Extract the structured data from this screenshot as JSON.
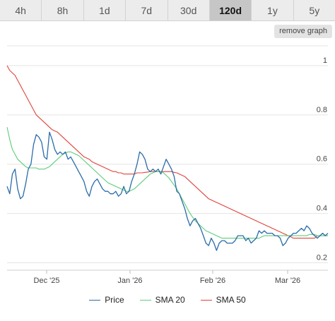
{
  "range_tabs": [
    {
      "label": "4h",
      "active": false
    },
    {
      "label": "8h",
      "active": false
    },
    {
      "label": "1d",
      "active": false
    },
    {
      "label": "7d",
      "active": false
    },
    {
      "label": "30d",
      "active": false
    },
    {
      "label": "120d",
      "active": true
    },
    {
      "label": "1y",
      "active": false
    },
    {
      "label": "5y",
      "active": false
    }
  ],
  "remove_graph_label": "remove graph",
  "chart_data": {
    "type": "line",
    "x_tick_labels": [
      "Dec '25",
      "Jan '26",
      "Feb '26",
      "Mar '26"
    ],
    "y_tick_labels": [
      "0.2",
      "0.4",
      "0.6",
      "0.8",
      "1"
    ],
    "y_ticks": [
      0.2,
      0.4,
      0.6,
      0.8,
      1.0
    ],
    "ylim": [
      0.17,
      1.08
    ],
    "grid": true,
    "legend_position": "bottom",
    "series": [
      {
        "name": "Price",
        "color": "#2a6ca8",
        "values": [
          0.51,
          0.48,
          0.56,
          0.58,
          0.5,
          0.46,
          0.47,
          0.52,
          0.58,
          0.6,
          0.68,
          0.72,
          0.71,
          0.69,
          0.63,
          0.62,
          0.73,
          0.7,
          0.66,
          0.64,
          0.65,
          0.64,
          0.65,
          0.62,
          0.63,
          0.61,
          0.59,
          0.57,
          0.55,
          0.53,
          0.49,
          0.47,
          0.51,
          0.53,
          0.54,
          0.52,
          0.5,
          0.49,
          0.49,
          0.48,
          0.48,
          0.49,
          0.47,
          0.48,
          0.51,
          0.48,
          0.49,
          0.53,
          0.56,
          0.6,
          0.65,
          0.64,
          0.62,
          0.58,
          0.57,
          0.58,
          0.57,
          0.58,
          0.56,
          0.59,
          0.62,
          0.6,
          0.58,
          0.55,
          0.49,
          0.48,
          0.45,
          0.42,
          0.38,
          0.35,
          0.37,
          0.38,
          0.36,
          0.34,
          0.31,
          0.28,
          0.27,
          0.3,
          0.28,
          0.25,
          0.28,
          0.29,
          0.29,
          0.28,
          0.28,
          0.28,
          0.29,
          0.31,
          0.31,
          0.31,
          0.29,
          0.3,
          0.28,
          0.29,
          0.3,
          0.33,
          0.32,
          0.33,
          0.32,
          0.32,
          0.32,
          0.31,
          0.31,
          0.3,
          0.27,
          0.28,
          0.3,
          0.31,
          0.32,
          0.32,
          0.33,
          0.34,
          0.33,
          0.35,
          0.34,
          0.32,
          0.31,
          0.3,
          0.31,
          0.32,
          0.31,
          0.32
        ]
      },
      {
        "name": "SMA 20",
        "color": "#5ccd7a",
        "values": [
          0.75,
          0.7,
          0.66,
          0.64,
          0.62,
          0.61,
          0.6,
          0.59,
          0.585,
          0.585,
          0.585,
          0.585,
          0.58,
          0.58,
          0.58,
          0.585,
          0.59,
          0.6,
          0.61,
          0.62,
          0.63,
          0.64,
          0.645,
          0.65,
          0.65,
          0.645,
          0.64,
          0.635,
          0.625,
          0.615,
          0.605,
          0.595,
          0.585,
          0.575,
          0.565,
          0.555,
          0.545,
          0.535,
          0.525,
          0.52,
          0.515,
          0.51,
          0.505,
          0.5,
          0.495,
          0.49,
          0.49,
          0.495,
          0.5,
          0.51,
          0.52,
          0.53,
          0.54,
          0.55,
          0.56,
          0.565,
          0.57,
          0.57,
          0.57,
          0.565,
          0.555,
          0.545,
          0.53,
          0.515,
          0.5,
          0.48,
          0.46,
          0.44,
          0.42,
          0.4,
          0.385,
          0.37,
          0.36,
          0.35,
          0.34,
          0.33,
          0.325,
          0.32,
          0.315,
          0.31,
          0.305,
          0.3,
          0.3,
          0.3,
          0.3,
          0.3,
          0.3,
          0.3,
          0.3,
          0.3,
          0.3,
          0.3,
          0.3,
          0.3,
          0.3,
          0.3,
          0.305,
          0.31,
          0.31,
          0.31,
          0.31,
          0.31,
          0.31,
          0.31,
          0.31,
          0.31,
          0.31,
          0.31,
          0.31,
          0.31,
          0.31,
          0.31,
          0.31,
          0.31,
          0.315,
          0.315,
          0.315,
          0.31,
          0.31,
          0.31,
          0.31,
          0.31
        ]
      },
      {
        "name": "SMA 50",
        "color": "#e0433b",
        "values": [
          1.0,
          0.98,
          0.97,
          0.96,
          0.94,
          0.92,
          0.9,
          0.88,
          0.86,
          0.84,
          0.82,
          0.8,
          0.79,
          0.78,
          0.77,
          0.76,
          0.75,
          0.74,
          0.735,
          0.73,
          0.72,
          0.71,
          0.7,
          0.69,
          0.68,
          0.67,
          0.66,
          0.65,
          0.64,
          0.63,
          0.625,
          0.62,
          0.61,
          0.605,
          0.6,
          0.595,
          0.59,
          0.585,
          0.58,
          0.575,
          0.57,
          0.57,
          0.565,
          0.565,
          0.56,
          0.56,
          0.56,
          0.56,
          0.56,
          0.565,
          0.565,
          0.565,
          0.567,
          0.568,
          0.57,
          0.57,
          0.57,
          0.57,
          0.57,
          0.57,
          0.57,
          0.57,
          0.57,
          0.567,
          0.565,
          0.56,
          0.555,
          0.55,
          0.54,
          0.53,
          0.52,
          0.51,
          0.5,
          0.49,
          0.48,
          0.47,
          0.46,
          0.455,
          0.45,
          0.445,
          0.44,
          0.435,
          0.43,
          0.425,
          0.42,
          0.415,
          0.41,
          0.405,
          0.4,
          0.395,
          0.39,
          0.385,
          0.38,
          0.375,
          0.37,
          0.365,
          0.36,
          0.355,
          0.35,
          0.345,
          0.34,
          0.335,
          0.33,
          0.325,
          0.32,
          0.315,
          0.31,
          0.305,
          0.3,
          0.3,
          0.3,
          0.3,
          0.3,
          0.3,
          0.3,
          0.3,
          0.3,
          0.31,
          0.31,
          0.31,
          0.31,
          0.31
        ]
      }
    ]
  }
}
